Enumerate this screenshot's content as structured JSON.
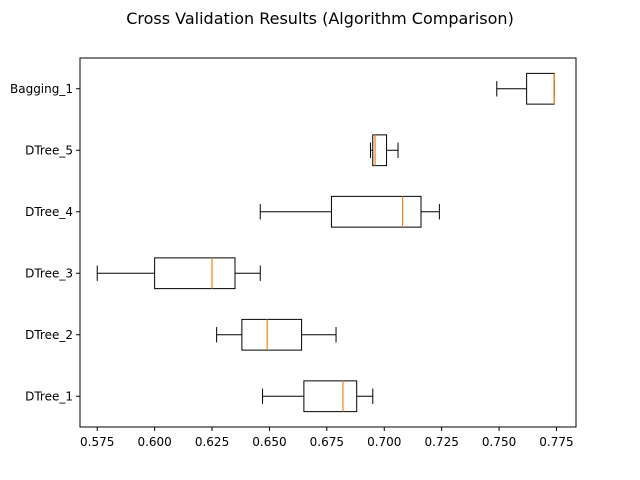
{
  "chart_data": {
    "type": "boxplot",
    "orientation": "horizontal",
    "title": "Cross Validation Results (Algorithm Comparison)",
    "xlabel": "",
    "ylabel": "",
    "xlim": [
      0.5675,
      0.7835
    ],
    "xticks": [
      0.575,
      0.6,
      0.625,
      0.65,
      0.675,
      0.7,
      0.725,
      0.75,
      0.775
    ],
    "xtick_labels": [
      "0.575",
      "0.600",
      "0.625",
      "0.650",
      "0.675",
      "0.700",
      "0.725",
      "0.750",
      "0.775"
    ],
    "categories": [
      "DTree_1",
      "DTree_2",
      "DTree_3",
      "DTree_4",
      "DTree_5",
      "Bagging_1"
    ],
    "boxes": [
      {
        "label": "DTree_1",
        "whisker_low": 0.647,
        "q1": 0.665,
        "median": 0.682,
        "q3": 0.688,
        "whisker_high": 0.695
      },
      {
        "label": "DTree_2",
        "whisker_low": 0.627,
        "q1": 0.638,
        "median": 0.649,
        "q3": 0.664,
        "whisker_high": 0.679
      },
      {
        "label": "DTree_3",
        "whisker_low": 0.575,
        "q1": 0.6,
        "median": 0.625,
        "q3": 0.635,
        "whisker_high": 0.646
      },
      {
        "label": "DTree_4",
        "whisker_low": 0.646,
        "q1": 0.677,
        "median": 0.708,
        "q3": 0.716,
        "whisker_high": 0.724
      },
      {
        "label": "DTree_5",
        "whisker_low": 0.694,
        "q1": 0.695,
        "median": 0.696,
        "q3": 0.701,
        "whisker_high": 0.706
      },
      {
        "label": "Bagging_1",
        "whisker_low": 0.749,
        "q1": 0.762,
        "median": 0.774,
        "q3": 0.774,
        "whisker_high": 0.774
      }
    ],
    "grid": false,
    "colors": {
      "box": "#000000",
      "median": "#ff7f0e",
      "background": "#ffffff"
    }
  }
}
